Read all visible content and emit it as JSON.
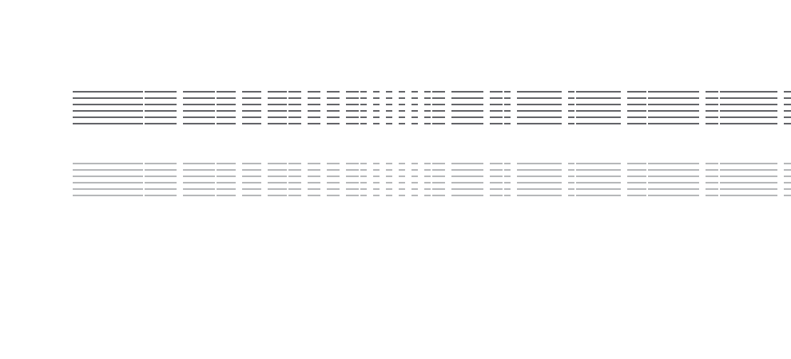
{
  "colors": {
    "background": "#ffffff",
    "dark_lines": "#646569",
    "light_lines": "#b6b8ba"
  }
}
